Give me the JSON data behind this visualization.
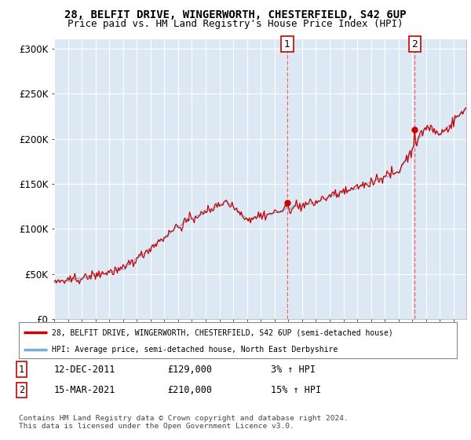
{
  "title": "28, BELFIT DRIVE, WINGERWORTH, CHESTERFIELD, S42 6UP",
  "subtitle": "Price paid vs. HM Land Registry's House Price Index (HPI)",
  "title_fontsize": 10,
  "subtitle_fontsize": 9,
  "background_color": "#ffffff",
  "plot_bg_color": "#dce9f5",
  "grid_color": "#ffffff",
  "red_color": "#cc0000",
  "blue_color": "#7aaddb",
  "vline_color": "#ff4444",
  "legend_label1": "28, BELFIT DRIVE, WINGERWORTH, CHESTERFIELD, S42 6UP (semi-detached house)",
  "legend_label2": "HPI: Average price, semi-detached house, North East Derbyshire",
  "footer": "Contains HM Land Registry data © Crown copyright and database right 2024.\nThis data is licensed under the Open Government Licence v3.0.",
  "ylim": [
    0,
    310000
  ],
  "yticks": [
    0,
    50000,
    100000,
    150000,
    200000,
    250000,
    300000
  ],
  "ytick_labels": [
    "£0",
    "£50K",
    "£100K",
    "£150K",
    "£200K",
    "£250K",
    "£300K"
  ],
  "ann1_label": "1",
  "ann1_date": "12-DEC-2011",
  "ann1_price": "£129,000",
  "ann1_pct": "3% ↑ HPI",
  "ann2_label": "2",
  "ann2_date": "15-MAR-2021",
  "ann2_price": "£210,000",
  "ann2_pct": "15% ↑ HPI"
}
